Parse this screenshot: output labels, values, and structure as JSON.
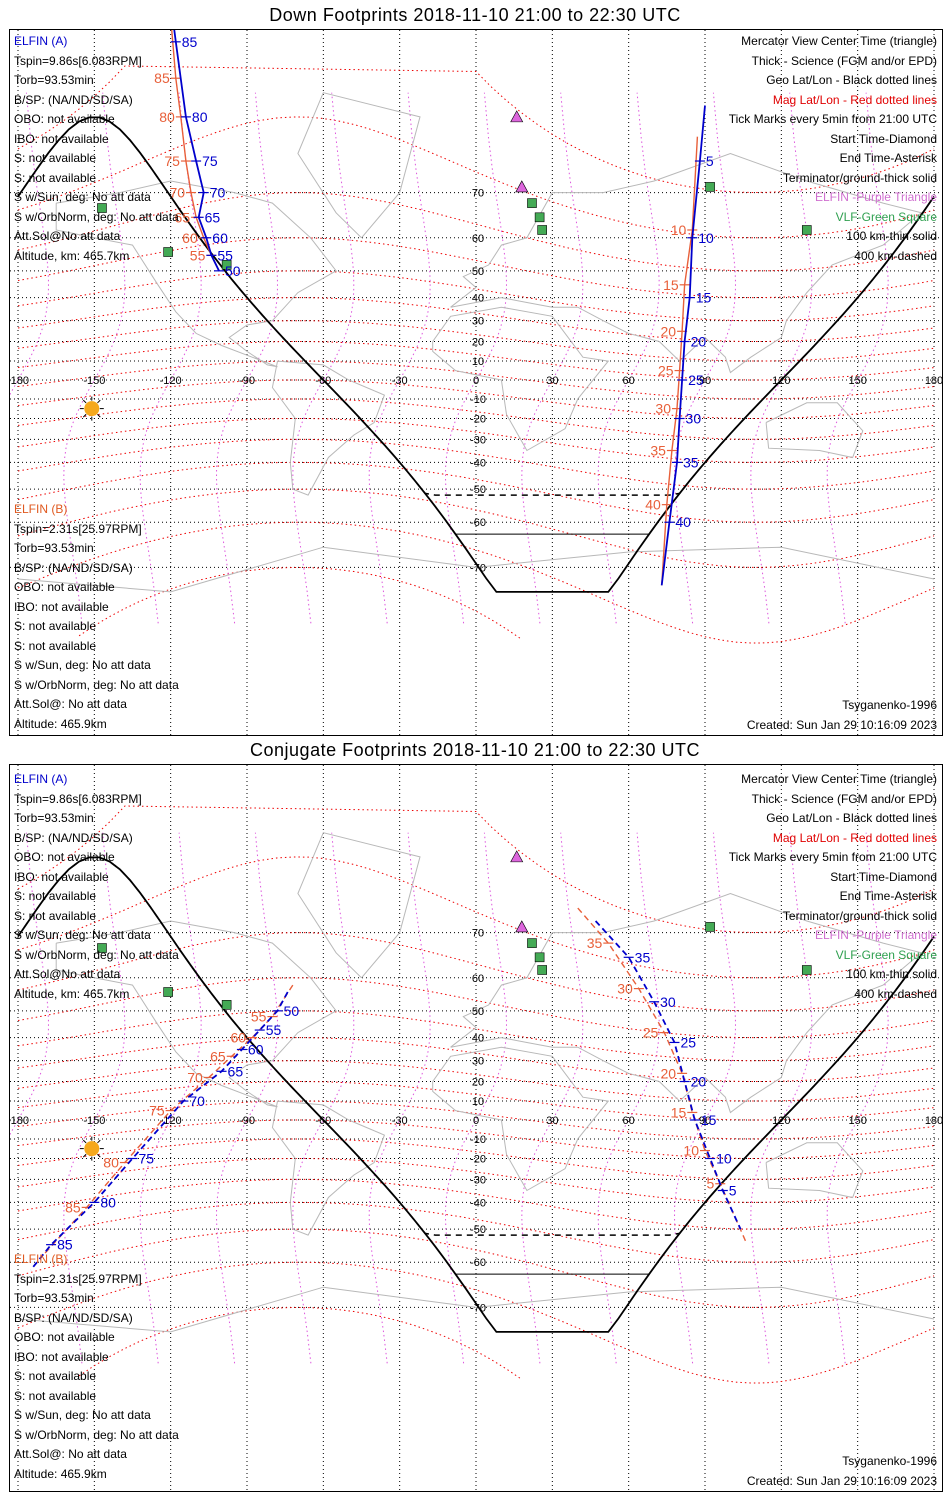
{
  "colors": {
    "elfin_a": "#0000cc",
    "elfin_b": "#e8603a",
    "geo_grid": "#000000",
    "mag_grid": "#ee0000",
    "mag_lon": "#dd55dd",
    "coast": "#b8b8b8",
    "terminator": "#000000",
    "elfin_station": "#dd66dd",
    "vlf_station": "#44aa55",
    "sun": "#f5a81c"
  },
  "axis": {
    "lon_ticks": [
      "-180",
      "-150",
      "-120",
      "-90",
      "-60",
      "-30",
      "0",
      "30",
      "60",
      "90",
      "120",
      "150",
      "180"
    ],
    "lat_ticks": [
      "70",
      "60",
      "50",
      "40",
      "30",
      "20",
      "10",
      "0",
      "-10",
      "-20",
      "-30",
      "-40",
      "-50",
      "-60",
      "-70"
    ]
  },
  "panels": [
    {
      "title": "Down Footprints 2018-11-10 21:00 to 22:30 UTC",
      "elfin_a": {
        "header": "ELFIN (A)",
        "lines": [
          "Tspin=9.86s[6.083RPM]",
          "Torb=93.53min",
          "B/SP: (NA/ND/SD/SA)",
          "OBO: not available",
          "IBO: not available",
          "S: not available",
          "S: not available",
          "S w/Sun, deg: No att data",
          "S w/OrbNorm, deg: No att data",
          "Att.Sol@No att data",
          "Altitude, km: 465.7km"
        ]
      },
      "elfin_b": {
        "header": "ELFIN (B)",
        "lines": [
          "Tspin=2.31s[25.97RPM]",
          "Torb=93.53min",
          "B/SP: (NA/ND/SD/SA)",
          "OBO: not available",
          "IBO: not available",
          "S: not available",
          "S: not available",
          "S w/Sun, deg: No att data",
          "S w/OrbNorm, deg: No att data",
          "Att.Sol@: No att data",
          "Altitude: 465.9km"
        ]
      },
      "legend": [
        "Mercator View Center Time (triangle)",
        "Thick - Science (FGM and/or EPD)",
        "Geo Lat/Lon - Black dotted lines",
        "Mag Lat/Lon - Red dotted lines",
        "Tick Marks every 5min from 21:00 UTC",
        "Start Time-Diamond",
        "End Time-Asterisk",
        "Terminator/ground-thick solid",
        "ELFIN -Purple Triangle",
        "VLF-Green Square",
        "100 km-thin solid",
        "400 km-dashed"
      ],
      "model": "Tsyganenko-1996",
      "created": "Created: Sun Jan 29 10:16:09 2023",
      "track_a": {
        "lonlat": [
          [
            -123,
            88
          ],
          [
            -118,
            85
          ],
          [
            -114,
            80
          ],
          [
            -110,
            75
          ],
          [
            -107,
            70
          ],
          [
            -109,
            65
          ],
          [
            -106,
            60
          ],
          [
            -104,
            55
          ],
          [
            -101,
            50
          ]
        ],
        "ticks": [
          "85",
          "80",
          "75",
          "70",
          "65",
          "60",
          "55",
          "50"
        ]
      },
      "track_b": {
        "lonlat": [
          [
            -120,
            86
          ],
          [
            -118,
            83
          ],
          [
            -116,
            80
          ],
          [
            -114,
            75
          ],
          [
            -112,
            70
          ],
          [
            -110,
            65
          ],
          [
            -107,
            60
          ],
          [
            -104,
            55
          ],
          [
            -101,
            50
          ]
        ],
        "ticks": [
          "85",
          "80",
          "75",
          "70",
          "65",
          "60",
          "55"
        ]
      },
      "track_a2": {
        "lonlat": [
          [
            90,
            81
          ],
          [
            88,
            75
          ],
          [
            85,
            60
          ],
          [
            84,
            40
          ],
          [
            82,
            20
          ],
          [
            81,
            0
          ],
          [
            80,
            -20
          ],
          [
            79,
            -40
          ],
          [
            76,
            -60
          ],
          [
            73,
            -73
          ]
        ],
        "ticks": [
          "5",
          "10",
          "15",
          "20",
          "25",
          "30",
          "35",
          "40"
        ]
      },
      "track_b2": {
        "lonlat": [
          [
            87,
            78
          ],
          [
            85,
            62
          ],
          [
            82,
            45
          ],
          [
            81,
            25
          ],
          [
            80,
            5
          ],
          [
            79,
            -15
          ],
          [
            77,
            -35
          ],
          [
            75,
            -55
          ],
          [
            73,
            -73
          ]
        ],
        "ticks": [
          "10",
          "15",
          "20",
          "25",
          "30",
          "35",
          "40"
        ]
      }
    },
    {
      "title": "Conjugate Footprints 2018-11-10 21:00 to 22:30 UTC",
      "elfin_a": {
        "header": "ELFIN (A)",
        "lines": [
          "Tspin=9.86s[6.083RPM]",
          "Torb=93.53min",
          "B/SP: (NA/ND/SD/SA)",
          "OBO: not available",
          "IBO: not available",
          "S: not available",
          "S: not available",
          "S w/Sun, deg: No att data",
          "S w/OrbNorm, deg: No att data",
          "Att.Sol@No att data",
          "Altitude, km: 465.7km"
        ]
      },
      "elfin_b": {
        "header": "ELFIN (B)",
        "lines": [
          "Tspin=2.31s[25.97RPM]",
          "Torb=93.53min",
          "B/SP: (NA/ND/SD/SA)",
          "OBO: not available",
          "IBO: not available",
          "S: not available",
          "S: not available",
          "S w/Sun, deg: No att data",
          "S w/OrbNorm, deg: No att data",
          "Att.Sol@: No att data",
          "Altitude: 465.9km"
        ]
      },
      "legend": [
        "Mercator View Center Time (triangle)",
        "Thick - Science (FGM and/or EPD)",
        "Geo Lat/Lon - Black dotted lines",
        "Mag Lat/Lon - Red dotted lines",
        "Tick Marks every 5min from 21:00 UTC",
        "Start Time-Diamond",
        "End Time-Asterisk",
        "Terminator/ground-thick solid",
        "ELFIN -Purple Triangle",
        "VLF-Green Square",
        "100 km-thin solid",
        "400 km-dashed"
      ],
      "model": "Tsyganenko-1996",
      "created": "Created: Sun Jan 29 10:16:09 2023",
      "track_a": {
        "lonlat": [
          [
            -74,
            56
          ],
          [
            -78,
            50
          ],
          [
            -85,
            43
          ],
          [
            -92,
            35
          ],
          [
            -100,
            25
          ],
          [
            -115,
            10
          ],
          [
            -135,
            -20
          ],
          [
            -150,
            -40
          ],
          [
            -167,
            -55
          ],
          [
            -175,
            -62
          ]
        ],
        "ticks": [
          "50",
          "55",
          "60",
          "65",
          "70",
          "75",
          "80",
          "85"
        ]
      },
      "track_b": {
        "lonlat": [
          [
            -72,
            58
          ],
          [
            -80,
            48
          ],
          [
            -88,
            40
          ],
          [
            -96,
            32
          ],
          [
            -105,
            22
          ],
          [
            -120,
            5
          ],
          [
            -138,
            -22
          ],
          [
            -153,
            -42
          ],
          [
            -170,
            -58
          ]
        ],
        "ticks": [
          "55",
          "60",
          "65",
          "70",
          "75",
          "80",
          "85"
        ]
      },
      "track_a2": {
        "lonlat": [
          [
            47,
            72
          ],
          [
            60,
            65
          ],
          [
            70,
            53
          ],
          [
            78,
            38
          ],
          [
            82,
            20
          ],
          [
            86,
            0
          ],
          [
            92,
            -20
          ],
          [
            97,
            -35
          ],
          [
            104,
            -50
          ]
        ],
        "ticks": [
          "35",
          "30",
          "25",
          "20",
          "15",
          "10",
          "5"
        ]
      },
      "track_b2": {
        "lonlat": [
          [
            40,
            74
          ],
          [
            52,
            68
          ],
          [
            64,
            57
          ],
          [
            74,
            42
          ],
          [
            81,
            24
          ],
          [
            85,
            4
          ],
          [
            90,
            -16
          ],
          [
            96,
            -32
          ],
          [
            106,
            -54
          ]
        ],
        "ticks": [
          "35",
          "30",
          "25",
          "20",
          "15",
          "10",
          "5"
        ]
      }
    }
  ]
}
